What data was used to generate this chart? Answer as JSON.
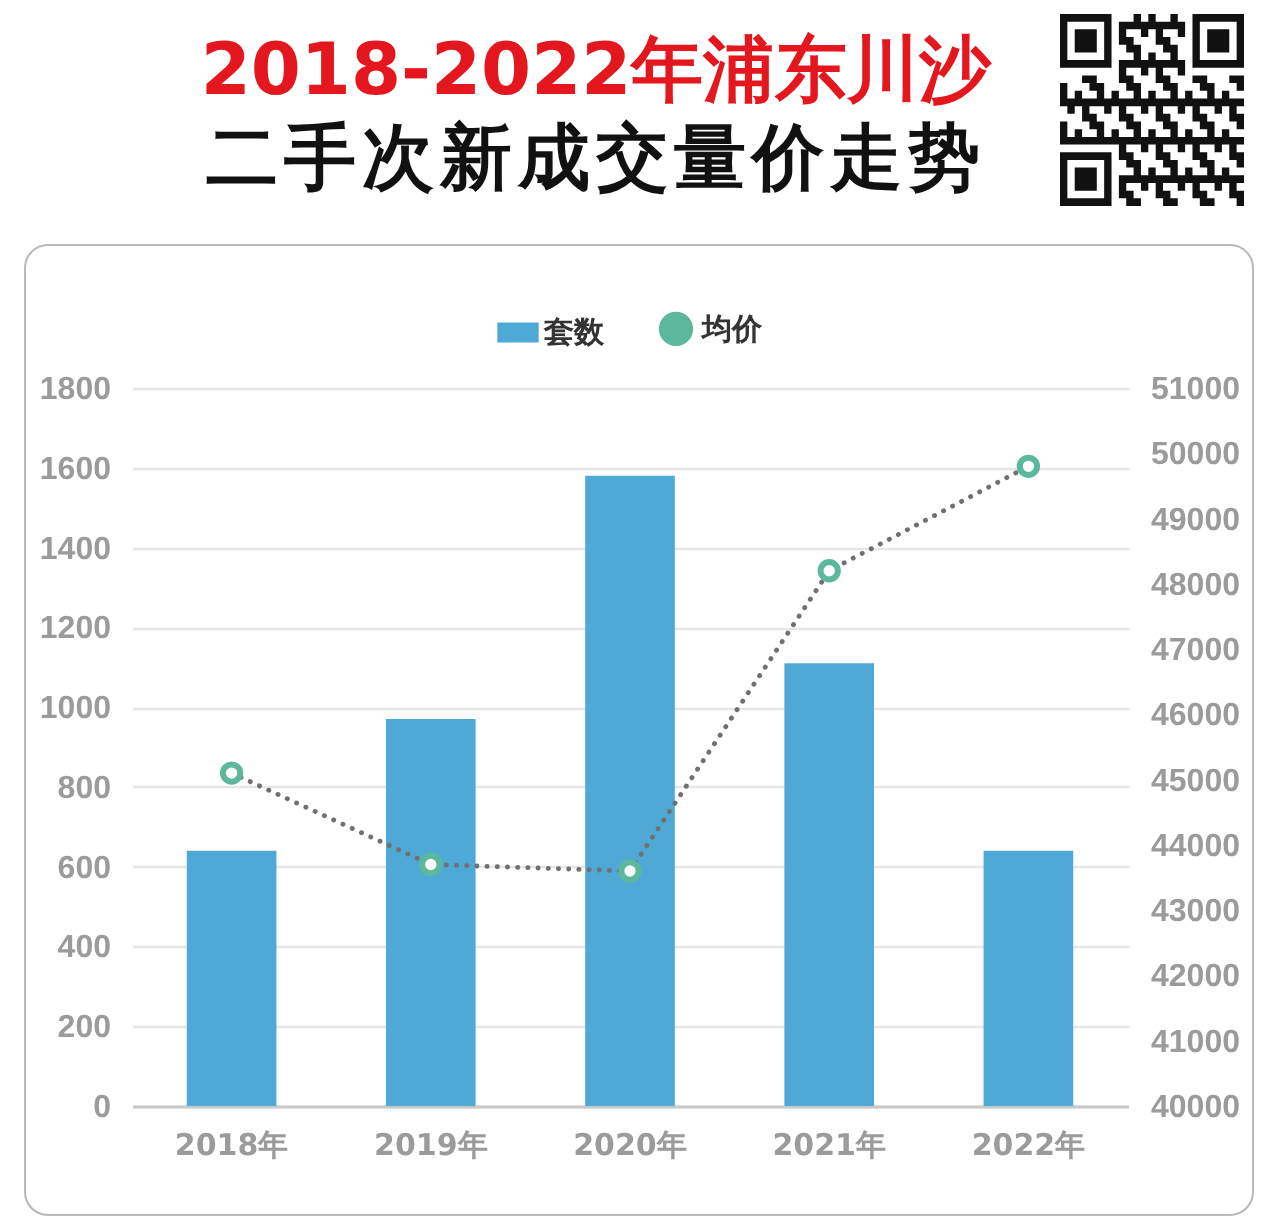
{
  "chart_data": {
    "type": "bar",
    "title": "2018-2022年浦东川沙",
    "subtitle": "二手次新成交量价走势",
    "categories": [
      "2018年",
      "2019年",
      "2020年",
      "2021年",
      "2022年"
    ],
    "series": [
      {
        "name": "套数",
        "color": "#4fa9d6",
        "values": [
          640,
          970,
          1580,
          1110,
          640
        ]
      },
      {
        "name": "均价",
        "type": "line",
        "axis": "y2",
        "color": "#5cb89c",
        "values": [
          45100,
          43700,
          43600,
          48200,
          49800
        ]
      }
    ],
    "ylim": [
      0,
      1800
    ],
    "yticks": [
      0,
      200,
      400,
      600,
      800,
      1000,
      1200,
      1400,
      1600,
      1800
    ],
    "y2lim": [
      40000,
      51000
    ],
    "y2ticks": [
      40000,
      41000,
      42000,
      43000,
      44000,
      45000,
      46000,
      47000,
      48000,
      49000,
      50000,
      51000
    ],
    "grid": "y",
    "legend": "top",
    "marker": "circle",
    "line_style": "dotted"
  }
}
